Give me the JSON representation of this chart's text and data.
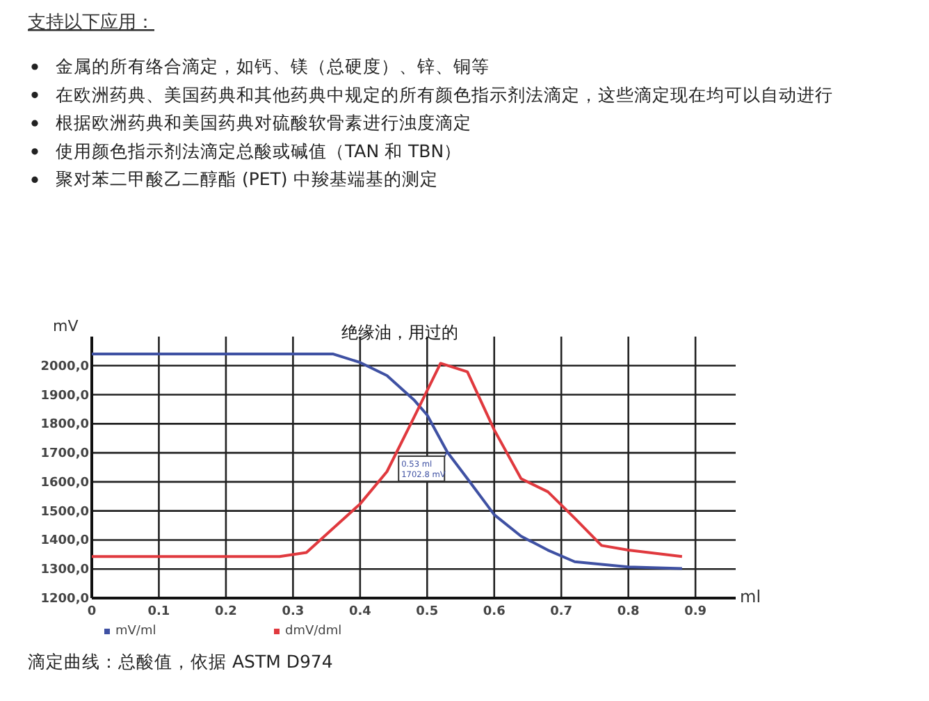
{
  "chart_data": {
    "type": "line",
    "title": "绝缘油，用过的",
    "xlabel": "ml",
    "ylabel": "mV",
    "annotations": [
      {
        "text": "0.53 ml\n1702.8 mV",
        "x": 0.53,
        "y": 1702.8
      },
      "支持以下应用：",
      "金属的所有络合滴定，如钙、镁（总硬度）、锌、铜等",
      "在欧洲药典、美国药典和其他药典中规定的所有颜色指示剂法滴定，这些滴定现在均可以自动进行",
      "根据欧洲药典和美国药典对硫酸软骨素进行浊度滴定",
      "使用颜色指示剂法滴定总酸或碱值（TAN 和 TBN）",
      "聚对苯二甲酸乙二醇酯 (PET) 中羧基端基的测定",
      "滴定曲线：总酸值，依据 ASTM D974"
    ],
    "series": [
      {
        "name": "mV/ml",
        "color": "#3f51a3",
        "x": [
          0,
          0.36,
          0.4,
          0.44,
          0.48,
          0.5,
          0.53,
          0.56,
          0.6,
          0.64,
          0.68,
          0.72,
          0.8,
          0.88
        ],
        "values": [
          2040,
          2040,
          2011,
          1966,
          1883,
          1830,
          1702.8,
          1611,
          1487,
          1413,
          1365,
          1325,
          1307,
          1302
        ]
      },
      {
        "name": "dmV/dml",
        "color": "#e0393e",
        "x": [
          0,
          0.28,
          0.32,
          0.4,
          0.44,
          0.48,
          0.52,
          0.56,
          0.6,
          0.64,
          0.68,
          0.72,
          0.76,
          0.8,
          0.88
        ],
        "values": [
          1343,
          1343,
          1357,
          1524,
          1635,
          1820,
          2008,
          1979,
          1779,
          1611,
          1566,
          1475,
          1381,
          1365,
          1343
        ]
      }
    ],
    "xlim": [
      0,
      0.96
    ],
    "ylim": [
      1200,
      2100
    ],
    "xticks": [
      0,
      0.1,
      0.2,
      0.3,
      0.4,
      0.5,
      0.6,
      0.7,
      0.8,
      0.9
    ],
    "yticks": [
      {
        "value": 1200,
        "label": "1200,0"
      },
      {
        "value": 1300,
        "label": "1300,0"
      },
      {
        "value": 1400,
        "label": "1400,0"
      },
      {
        "value": 1500,
        "label": "1500,0"
      },
      {
        "value": 1600,
        "label": "1600,0"
      },
      {
        "value": 1700,
        "label": "1700,0"
      },
      {
        "value": 1800,
        "label": "1800,0"
      },
      {
        "value": 1900,
        "label": "1900,0"
      },
      {
        "value": 2000,
        "label": "2000,0"
      }
    ],
    "grid": true,
    "legend": "bottom",
    "marker": "none",
    "line_style": "solid"
  }
}
